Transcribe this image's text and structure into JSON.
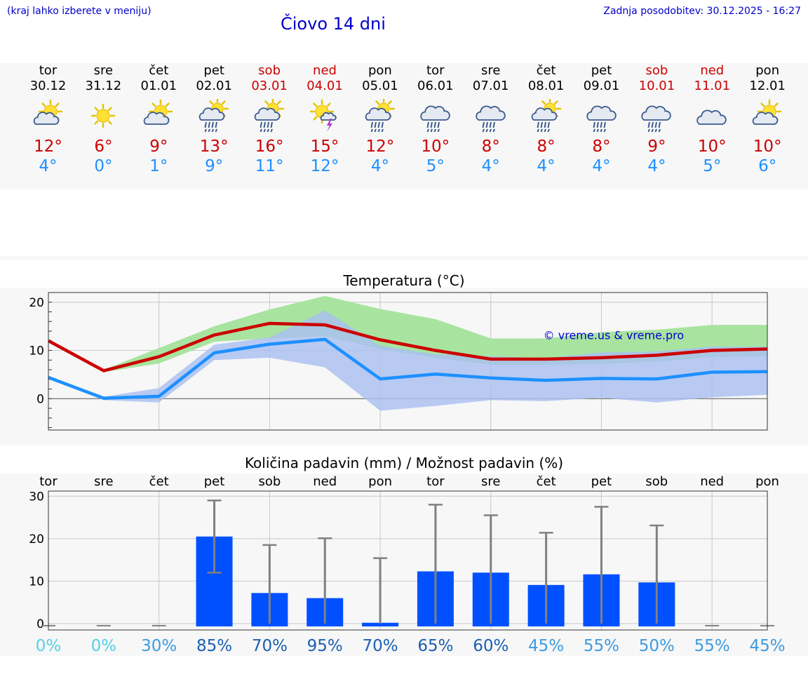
{
  "header": {
    "hint": "(kraj lahko izberete v meniju)",
    "title": "Čiovo 14 dni",
    "updated": "Zadnja posodobitev: 30.12.2025 - 16:27"
  },
  "days": [
    {
      "name": "tor",
      "date": "30.12",
      "icon": "sun-cloud-icon",
      "tmax": "12°",
      "tmin": "4°",
      "weekend": false
    },
    {
      "name": "sre",
      "date": "31.12",
      "icon": "sun-icon",
      "tmax": "6°",
      "tmin": "0°",
      "weekend": false
    },
    {
      "name": "čet",
      "date": "01.01",
      "icon": "sun-cloud-icon",
      "tmax": "9°",
      "tmin": "1°",
      "weekend": false
    },
    {
      "name": "pet",
      "date": "02.01",
      "icon": "sun-cloud-rain-icon",
      "tmax": "13°",
      "tmin": "9°",
      "weekend": false
    },
    {
      "name": "sob",
      "date": "03.01",
      "icon": "sun-cloud-rain-icon",
      "tmax": "16°",
      "tmin": "11°",
      "weekend": true
    },
    {
      "name": "ned",
      "date": "04.01",
      "icon": "sun-thunder-icon",
      "tmax": "15°",
      "tmin": "12°",
      "weekend": true
    },
    {
      "name": "pon",
      "date": "05.01",
      "icon": "sun-cloud-rain-icon",
      "tmax": "12°",
      "tmin": "4°",
      "weekend": false
    },
    {
      "name": "tor",
      "date": "06.01",
      "icon": "cloud-rain-icon",
      "tmax": "10°",
      "tmin": "5°",
      "weekend": false
    },
    {
      "name": "sre",
      "date": "07.01",
      "icon": "cloud-rain-icon",
      "tmax": "8°",
      "tmin": "4°",
      "weekend": false
    },
    {
      "name": "čet",
      "date": "08.01",
      "icon": "sun-cloud-rain-icon",
      "tmax": "8°",
      "tmin": "4°",
      "weekend": false
    },
    {
      "name": "pet",
      "date": "09.01",
      "icon": "cloud-rain-icon",
      "tmax": "8°",
      "tmin": "4°",
      "weekend": false
    },
    {
      "name": "sob",
      "date": "10.01",
      "icon": "cloud-rain-icon",
      "tmax": "9°",
      "tmin": "4°",
      "weekend": true
    },
    {
      "name": "ned",
      "date": "11.01",
      "icon": "cloud-icon",
      "tmax": "10°",
      "tmin": "5°",
      "weekend": true
    },
    {
      "name": "pon",
      "date": "12.01",
      "icon": "sun-cloud-icon",
      "tmax": "10°",
      "tmin": "6°",
      "weekend": false
    }
  ],
  "colors": {
    "tmax": "#cc0000",
    "tmin": "#1e90ff",
    "maxBand": "#a8e4a0",
    "minBand": "#a9bff0",
    "overlap": "#7cc4a8",
    "bar": "#0050ff",
    "whisker": "#808080",
    "link": "#0000cc"
  },
  "chart_data": [
    {
      "type": "line",
      "title": "Temperatura (°C)",
      "watermark": "© vreme.us & vreme.pro",
      "ylim": [
        -6.5,
        22
      ],
      "yticks": [
        0,
        10,
        20
      ],
      "x_count": 14,
      "series": [
        {
          "values": [
            12,
            5.8,
            8.7,
            13.2,
            15.6,
            15.3,
            12.2,
            10,
            8.2,
            8.2,
            8.5,
            9,
            10,
            10.3
          ]
        },
        {
          "values": [
            4.4,
            0.1,
            0.5,
            9.5,
            11.3,
            12.3,
            4.1,
            5.1,
            4.3,
            3.8,
            4.2,
            4.1,
            5.5,
            5.6
          ]
        }
      ],
      "bands": [
        {
          "lower": [
            12,
            5.5,
            7.3,
            11.8,
            12.5,
            13,
            10.3,
            8.5,
            7,
            7,
            7.2,
            7.7,
            8.6,
            8.8
          ],
          "upper": [
            12.2,
            6,
            10.5,
            15,
            18.5,
            21.3,
            18.6,
            16.5,
            12.5,
            12.5,
            13.8,
            14.3,
            15.3,
            15.3
          ]
        },
        {
          "lower": [
            4.3,
            -0.3,
            -0.8,
            8,
            8.5,
            6.5,
            -2.5,
            -1.5,
            -0.3,
            -0.5,
            0.2,
            -0.8,
            0.3,
            0.8
          ],
          "upper": [
            4.6,
            0.4,
            2.2,
            11.2,
            12.7,
            18.3,
            11,
            9.2,
            8.8,
            8.4,
            9.6,
            9.8,
            10.8,
            10.8
          ]
        }
      ],
      "grid": true
    },
    {
      "type": "bar",
      "title": "Količina padavin (mm) / Možnost padavin (%)",
      "categories": [
        "tor",
        "sre",
        "čet",
        "pet",
        "sob",
        "ned",
        "pon",
        "tor",
        "sre",
        "čet",
        "pet",
        "sob",
        "ned",
        "pon"
      ],
      "values": [
        0,
        0,
        0,
        20.5,
        7.2,
        6,
        0.2,
        12.3,
        12,
        9.1,
        11.6,
        9.7,
        0,
        0
      ],
      "err_low": [
        0,
        0,
        0,
        12,
        0,
        0,
        0,
        0,
        0,
        0,
        0,
        0,
        0,
        0
      ],
      "err_high": [
        0,
        0,
        0,
        29,
        18.5,
        20.1,
        15.4,
        28,
        25.5,
        21.4,
        27.5,
        23.1,
        0,
        0
      ],
      "probability": [
        "0%",
        "0%",
        "30%",
        "85%",
        "70%",
        "95%",
        "70%",
        "65%",
        "60%",
        "45%",
        "55%",
        "50%",
        "55%",
        "45%"
      ],
      "ylim": [
        -1.5,
        31.2
      ],
      "yticks": [
        0,
        10,
        20,
        30
      ],
      "grid": true
    }
  ]
}
